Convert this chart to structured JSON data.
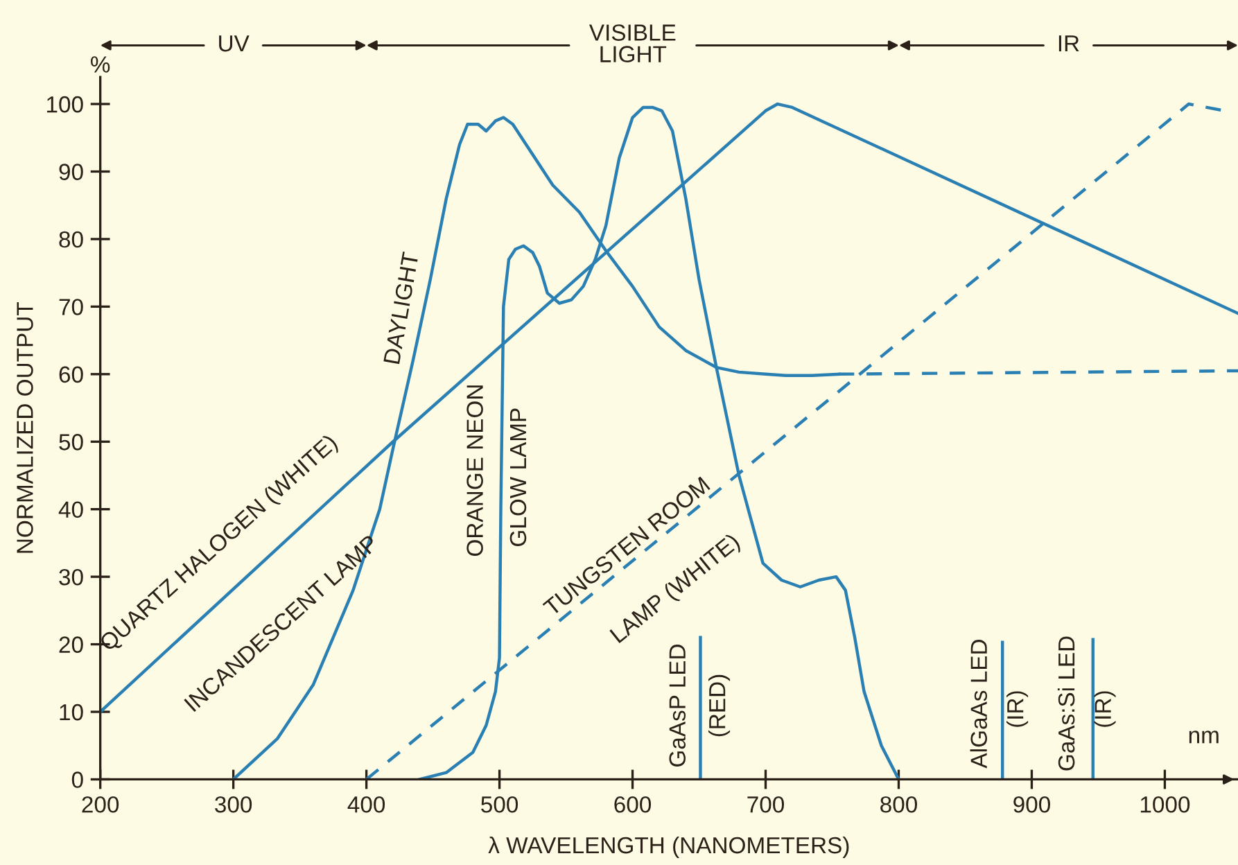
{
  "chart_data": {
    "type": "line",
    "xlabel": "λ WAVELENGTH (NANOMETERS)",
    "ylabel": "NORMALIZED OUTPUT",
    "xlim": [
      200,
      1055
    ],
    "ylim": [
      0,
      104
    ],
    "xticks": [
      200,
      300,
      400,
      500,
      600,
      700,
      800,
      900,
      1000
    ],
    "yticks": [
      0,
      10,
      20,
      30,
      40,
      50,
      60,
      70,
      80,
      90,
      100
    ],
    "grid": false,
    "legend": false,
    "marker": "none",
    "series": [
      {
        "color": "#2a7fb3",
        "line_style": "solid",
        "x": [
          200,
          420,
          700,
          709,
          720,
          1055
        ],
        "values": [
          10,
          50,
          99,
          100,
          99.5,
          69
        ]
      },
      {
        "color": "#2a7fb3",
        "line_style": "solid",
        "x": [
          300,
          333,
          360,
          390,
          410,
          420,
          435,
          448,
          460,
          470,
          476,
          484,
          490,
          497,
          503,
          510,
          520,
          540,
          560,
          581,
          600,
          620,
          640,
          663,
          680,
          700,
          715,
          735,
          755
        ],
        "values": [
          0,
          6,
          14,
          28,
          40,
          49,
          62,
          74,
          86,
          94,
          97,
          97,
          96,
          97.5,
          98,
          97,
          94,
          88,
          84,
          78,
          73,
          67,
          63.5,
          61,
          60.3,
          60,
          59.8,
          59.8,
          60
        ]
      },
      {
        "color": "#2a7fb3",
        "line_style": "dashed",
        "x": [
          755,
          1055
        ],
        "values": [
          60,
          60.5
        ]
      },
      {
        "color": "#2a7fb3",
        "line_style": "solid",
        "x": [
          440,
          460,
          480,
          490,
          497,
          500,
          501,
          503,
          507,
          512,
          518,
          525,
          530,
          536,
          545,
          554,
          563,
          572,
          580,
          590,
          600,
          608,
          615,
          622,
          630,
          640,
          650,
          663,
          680,
          698,
          712,
          726,
          740,
          753,
          760,
          767,
          774,
          787,
          800
        ],
        "values": [
          0,
          1,
          4,
          8,
          13,
          18,
          40,
          70,
          77,
          78.5,
          79,
          78,
          76,
          72,
          70.5,
          71,
          73,
          77,
          82,
          92,
          98,
          99.5,
          99.5,
          99,
          96,
          86,
          74,
          61,
          45,
          32,
          29.5,
          28.5,
          29.5,
          30,
          28,
          21,
          13,
          5,
          0
        ]
      },
      {
        "color": "#2a7fb3",
        "line_style": "dashed",
        "x": [
          400,
          1018,
          1045
        ],
        "values": [
          0,
          100,
          99
        ]
      },
      {
        "color": "#2a7fb3",
        "line_style": "solid",
        "x": [
          651,
          651
        ],
        "values": [
          0,
          21
        ]
      },
      {
        "color": "#2a7fb3",
        "line_style": "solid",
        "x": [
          878,
          878
        ],
        "values": [
          0,
          20.3
        ]
      },
      {
        "color": "#2a7fb3",
        "line_style": "solid",
        "x": [
          946,
          946
        ],
        "values": [
          0,
          20.7
        ]
      }
    ],
    "annotations": [
      "QUARTZ HALOGEN (WHITE)",
      "INCANDESCENT LAMP",
      "DAYLIGHT",
      "ORANGE NEON",
      "GLOW LAMP",
      "TUNGSTEN ROOM",
      "LAMP (WHITE)",
      "GaAsP LED",
      "(RED)",
      "AlGaAs LED",
      "(IR)",
      "GaAs:Si LED",
      "(IR)",
      "%",
      "nm",
      "UV",
      "VISIBLE\nLIGHT",
      "IR"
    ]
  }
}
